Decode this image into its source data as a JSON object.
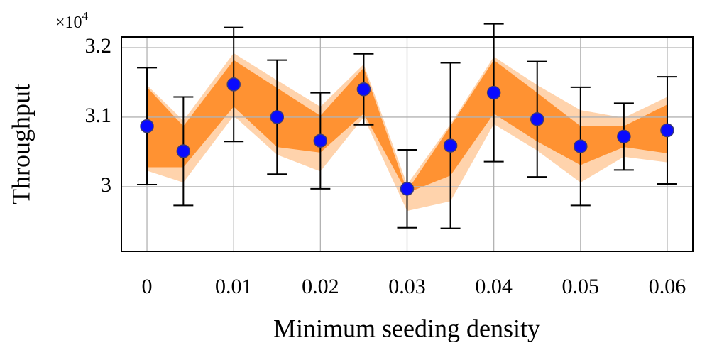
{
  "chart_data": {
    "type": "errorbar_band",
    "x_label": "Minimum seeding density",
    "y_label": "Throughput",
    "y_multiplier_base": "×10",
    "y_multiplier_exponent": "4",
    "x": [
      0,
      0.0042,
      0.01,
      0.015,
      0.02,
      0.025,
      0.03,
      0.035,
      0.04,
      0.045,
      0.05,
      0.055,
      0.06
    ],
    "values": [
      3.087,
      3.051,
      3.147,
      3.1,
      3.066,
      3.14,
      2.997,
      3.059,
      3.135,
      3.097,
      3.058,
      3.072,
      3.081
    ],
    "errors": [
      0.084,
      0.078,
      0.082,
      0.082,
      0.069,
      0.051,
      0.056,
      0.119,
      0.099,
      0.083,
      0.085,
      0.048,
      0.077
    ],
    "color": "#0a0aff",
    "band_inner": {
      "color": "#ff9232",
      "upper": [
        3.143,
        3.087,
        3.182,
        3.142,
        3.102,
        3.171,
        2.994,
        3.087,
        3.182,
        3.135,
        3.087,
        3.087,
        3.118
      ],
      "lower": [
        3.028,
        3.028,
        3.115,
        3.057,
        3.049,
        3.105,
        2.991,
        3.016,
        3.105,
        3.065,
        3.031,
        3.057,
        3.048
      ]
    },
    "band_outer": {
      "color": "#ffd3ac",
      "upper": [
        3.146,
        3.095,
        3.192,
        3.153,
        3.115,
        3.176,
        3.003,
        3.09,
        3.187,
        3.146,
        3.11,
        3.099,
        3.129
      ],
      "lower": [
        3.023,
        3.006,
        3.102,
        3.046,
        3.022,
        3.1,
        2.965,
        2.979,
        3.09,
        3.052,
        3.006,
        3.043,
        3.035
      ]
    },
    "xlim": [
      -0.00295,
      0.06295
    ],
    "ylim": [
      2.907,
      3.2153
    ],
    "xticks": [
      0,
      0.01,
      0.02,
      0.03,
      0.04,
      0.05,
      0.06
    ],
    "yticks": [
      3,
      3.1,
      3.2
    ],
    "grid": true
  }
}
